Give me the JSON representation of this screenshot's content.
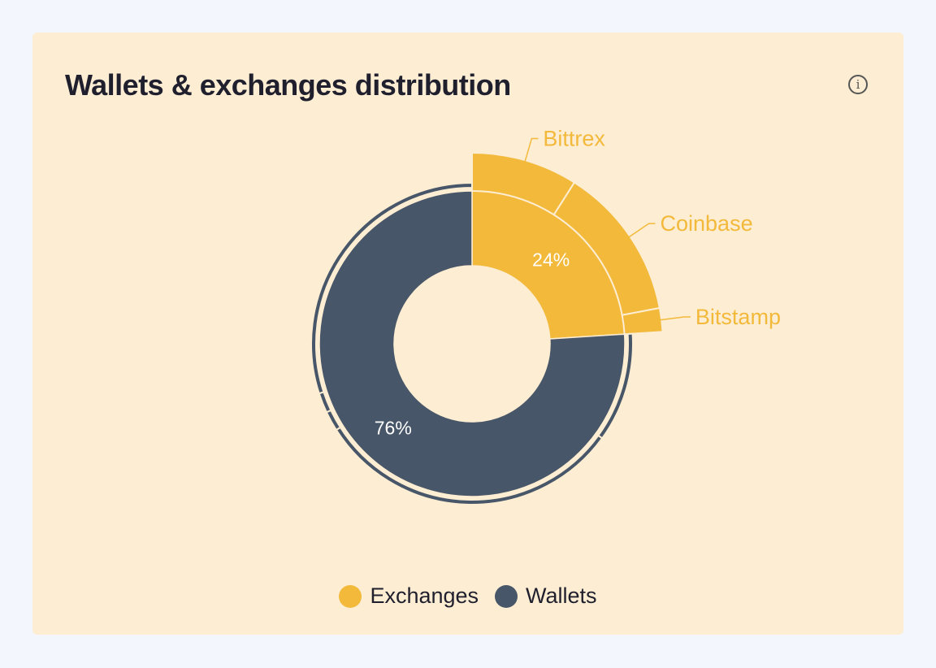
{
  "card": {
    "title": "Wallets & exchanges distribution",
    "info_icon": "info-icon",
    "info_glyph": "i"
  },
  "chart_data": {
    "type": "pie",
    "inner": [
      {
        "name": "Exchanges",
        "value": 24,
        "label": "24%",
        "color": "#f3b93b"
      },
      {
        "name": "Wallets",
        "value": 76,
        "label": "76%",
        "color": "#475668"
      }
    ],
    "outer": [
      {
        "name": "Bittrex",
        "parent": "Exchanges",
        "value": 9
      },
      {
        "name": "Coinbase",
        "parent": "Exchanges",
        "value": 13
      },
      {
        "name": "Bitstamp",
        "parent": "Exchanges",
        "value": 2
      },
      {
        "name": "",
        "parent": "Wallets",
        "value": 11
      },
      {
        "name": "",
        "parent": "Wallets",
        "value": 31
      },
      {
        "name": "",
        "parent": "Wallets",
        "value": 2
      },
      {
        "name": "",
        "parent": "Wallets",
        "value": 2
      },
      {
        "name": "",
        "parent": "Wallets",
        "value": 30
      }
    ],
    "legend": [
      {
        "label": "Exchanges",
        "color": "#f3b93b"
      },
      {
        "label": "Wallets",
        "color": "#475668"
      }
    ],
    "legend_position": "bottom-center"
  }
}
